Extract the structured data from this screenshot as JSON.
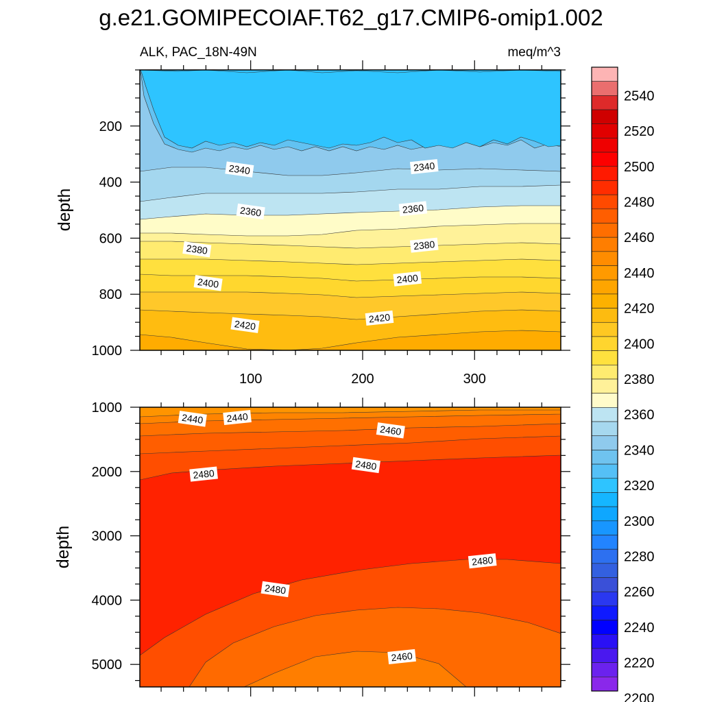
{
  "chart_data": {
    "type": "heatmap",
    "title": "g.e21.GOMIPECOIAF.T62_g17.CMIP6-omip1.002",
    "left_subtitle": "ALK, PAC_18N-49N",
    "right_subtitle": "meq/m^3",
    "x_tick_labels": [
      "100",
      "200",
      "300"
    ],
    "x_ticks": [
      100,
      200,
      300
    ],
    "xlim": [
      1,
      377
    ],
    "panels": [
      {
        "name": "upper",
        "ylabel": "depth",
        "ylim": [
          1000,
          0
        ],
        "y_ticks": [
          200,
          400,
          600,
          800,
          1000
        ],
        "y_tick_labels": [
          "200",
          "400",
          "600",
          "800",
          "1000"
        ],
        "contour_labels": [
          {
            "text": "2340",
            "x": 90,
            "y": 355
          },
          {
            "text": "2340",
            "x": 255,
            "y": 345
          },
          {
            "text": "2360",
            "x": 100,
            "y": 505
          },
          {
            "text": "2360",
            "x": 245,
            "y": 495
          },
          {
            "text": "2380",
            "x": 52,
            "y": 640
          },
          {
            "text": "2380",
            "x": 255,
            "y": 625
          },
          {
            "text": "2400",
            "x": 62,
            "y": 760
          },
          {
            "text": "2400",
            "x": 240,
            "y": 745
          },
          {
            "text": "2420",
            "x": 95,
            "y": 910
          },
          {
            "text": "2420",
            "x": 215,
            "y": 885
          }
        ]
      },
      {
        "name": "lower",
        "ylabel": "depth",
        "ylim": [
          5350,
          1000
        ],
        "y_ticks": [
          1000,
          2000,
          3000,
          4000,
          5000
        ],
        "y_tick_labels": [
          "1000",
          "2000",
          "3000",
          "4000",
          "5000"
        ],
        "contour_labels": [
          {
            "text": "2440",
            "x": 48,
            "y": 1180
          },
          {
            "text": "2440",
            "x": 88,
            "y": 1160
          },
          {
            "text": "2460",
            "x": 225,
            "y": 1360
          },
          {
            "text": "2480",
            "x": 58,
            "y": 2040
          },
          {
            "text": "2480",
            "x": 203,
            "y": 1900
          },
          {
            "text": "2480",
            "x": 307,
            "y": 3390
          },
          {
            "text": "2480",
            "x": 122,
            "y": 3830
          },
          {
            "text": "2460",
            "x": 235,
            "y": 4880
          }
        ]
      }
    ],
    "colorbar": {
      "labels": [
        "2540",
        "2520",
        "2500",
        "2480",
        "2460",
        "2440",
        "2420",
        "2400",
        "2380",
        "2360",
        "2340",
        "2320",
        "2300",
        "2280",
        "2260",
        "2240",
        "2220",
        "2200"
      ],
      "colors": [
        "#fdb4b4",
        "#ea6e6e",
        "#de2a2a",
        "#cf0000",
        "#e10000",
        "#ef0000",
        "#fd0000",
        "#ff1a00",
        "#ff2d00",
        "#ff4a00",
        "#ff5e00",
        "#ff6e00",
        "#ff7e00",
        "#ff8c00",
        "#ff9a00",
        "#fea500",
        "#fdb100",
        "#fdbb10",
        "#fec822",
        "#ffd52e",
        "#ffe13e",
        "#ffeb70",
        "#fff199",
        "#fffbca",
        "#bde4f2",
        "#a6d8ef",
        "#8fcaed",
        "#6fc3ef",
        "#55c0f6",
        "#2ec4ff",
        "#15b6ff",
        "#0ea7ff",
        "#1896ff",
        "#2284ff",
        "#2d70f0",
        "#3360e0",
        "#3a50d8",
        "#2a38f0",
        "#0f1aff",
        "#0000ff",
        "#2a10f5",
        "#4a18ef",
        "#6b22ee",
        "#8a28ea"
      ]
    }
  }
}
